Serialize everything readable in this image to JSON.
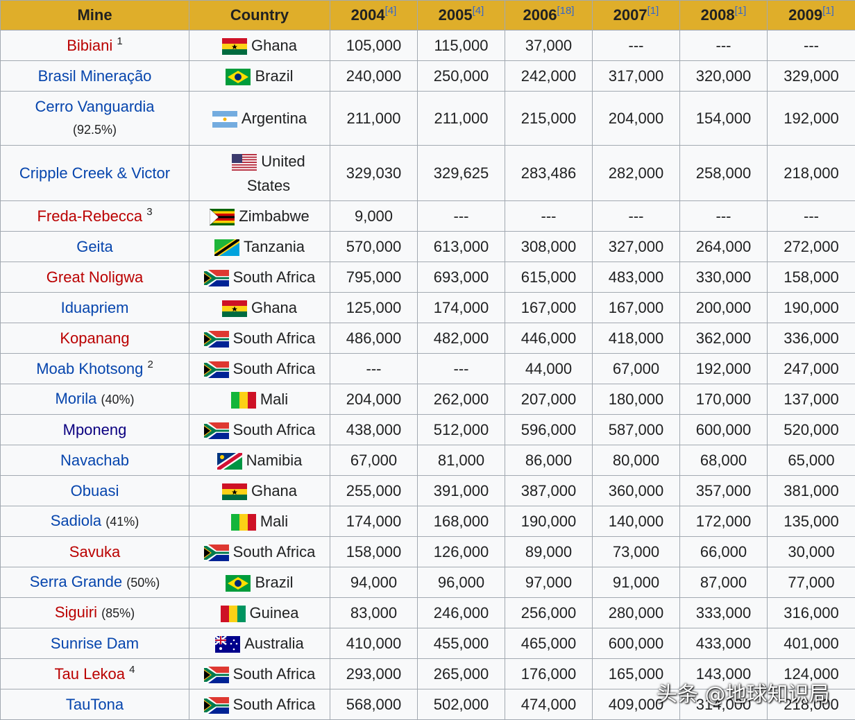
{
  "header": {
    "columns": [
      {
        "label": "Mine"
      },
      {
        "label": "Country"
      },
      {
        "label": "2004",
        "ref": "[4]"
      },
      {
        "label": "2005",
        "ref": "[4]"
      },
      {
        "label": "2006",
        "ref": "[18]"
      },
      {
        "label": "2007",
        "ref": "[1]"
      },
      {
        "label": "2008",
        "ref": "[1]"
      },
      {
        "label": "2009",
        "ref": "[1]"
      }
    ]
  },
  "table": {
    "rows": [
      {
        "mine": "Bibiani",
        "sup": "1",
        "color": "#ba0000",
        "country": "Ghana",
        "values": [
          "105,000",
          "115,000",
          "37,000",
          "---",
          "---",
          "---"
        ]
      },
      {
        "mine": "Brasil Mineração",
        "color": "#0645ad",
        "country": "Brazil",
        "values": [
          "240,000",
          "250,000",
          "242,000",
          "317,000",
          "320,000",
          "329,000"
        ]
      },
      {
        "mine": "Cerro Vanguardia",
        "share": "(92.5%)",
        "color": "#0645ad",
        "country": "Argentina",
        "values": [
          "211,000",
          "211,000",
          "215,000",
          "204,000",
          "154,000",
          "192,000"
        ]
      },
      {
        "mine": "Cripple Creek & Victor",
        "color": "#0645ad",
        "country": "United States",
        "values": [
          "329,030",
          "329,625",
          "283,486",
          "282,000",
          "258,000",
          "218,000"
        ]
      },
      {
        "mine": "Freda-Rebecca",
        "sup": "3",
        "color": "#ba0000",
        "country": "Zimbabwe",
        "values": [
          "9,000",
          "---",
          "---",
          "---",
          "---",
          "---"
        ]
      },
      {
        "mine": "Geita",
        "color": "#0645ad",
        "country": "Tanzania",
        "values": [
          "570,000",
          "613,000",
          "308,000",
          "327,000",
          "264,000",
          "272,000"
        ]
      },
      {
        "mine": "Great Noligwa",
        "color": "#ba0000",
        "country": "South Africa",
        "values": [
          "795,000",
          "693,000",
          "615,000",
          "483,000",
          "330,000",
          "158,000"
        ]
      },
      {
        "mine": "Iduapriem",
        "color": "#0645ad",
        "country": "Ghana",
        "values": [
          "125,000",
          "174,000",
          "167,000",
          "167,000",
          "200,000",
          "190,000"
        ]
      },
      {
        "mine": "Kopanang",
        "color": "#ba0000",
        "country": "South Africa",
        "values": [
          "486,000",
          "482,000",
          "446,000",
          "418,000",
          "362,000",
          "336,000"
        ]
      },
      {
        "mine": "Moab Khotsong",
        "sup": "2",
        "color": "#0645ad",
        "country": "South Africa",
        "values": [
          "---",
          "---",
          "44,000",
          "67,000",
          "192,000",
          "247,000"
        ]
      },
      {
        "mine": "Morila",
        "share": "(40%)",
        "color": "#0645ad",
        "country": "Mali",
        "values": [
          "204,000",
          "262,000",
          "207,000",
          "180,000",
          "170,000",
          "137,000"
        ]
      },
      {
        "mine": "Mponeng",
        "color": "#0b0080",
        "country": "South Africa",
        "values": [
          "438,000",
          "512,000",
          "596,000",
          "587,000",
          "600,000",
          "520,000"
        ]
      },
      {
        "mine": "Navachab",
        "color": "#0645ad",
        "country": "Namibia",
        "values": [
          "67,000",
          "81,000",
          "86,000",
          "80,000",
          "68,000",
          "65,000"
        ]
      },
      {
        "mine": "Obuasi",
        "color": "#0645ad",
        "country": "Ghana",
        "values": [
          "255,000",
          "391,000",
          "387,000",
          "360,000",
          "357,000",
          "381,000"
        ]
      },
      {
        "mine": "Sadiola",
        "share": "(41%)",
        "color": "#0645ad",
        "country": "Mali",
        "values": [
          "174,000",
          "168,000",
          "190,000",
          "140,000",
          "172,000",
          "135,000"
        ]
      },
      {
        "mine": "Savuka",
        "color": "#ba0000",
        "country": "South Africa",
        "values": [
          "158,000",
          "126,000",
          "89,000",
          "73,000",
          "66,000",
          "30,000"
        ]
      },
      {
        "mine": "Serra Grande",
        "share": "(50%)",
        "color": "#0645ad",
        "country": "Brazil",
        "values": [
          "94,000",
          "96,000",
          "97,000",
          "91,000",
          "87,000",
          "77,000"
        ]
      },
      {
        "mine": "Siguiri",
        "share": "(85%)",
        "color": "#ba0000",
        "country": "Guinea",
        "values": [
          "83,000",
          "246,000",
          "256,000",
          "280,000",
          "333,000",
          "316,000"
        ]
      },
      {
        "mine": "Sunrise Dam",
        "color": "#0645ad",
        "country": "Australia",
        "values": [
          "410,000",
          "455,000",
          "465,000",
          "600,000",
          "433,000",
          "401,000"
        ]
      },
      {
        "mine": "Tau Lekoa",
        "sup": "4",
        "color": "#ba0000",
        "country": "South Africa",
        "values": [
          "293,000",
          "265,000",
          "176,000",
          "165,000",
          "143,000",
          "124,000"
        ]
      },
      {
        "mine": "TauTona",
        "color": "#0645ad",
        "country": "South Africa",
        "values": [
          "568,000",
          "502,000",
          "474,000",
          "409,000",
          "314,000",
          "218,000"
        ]
      }
    ]
  },
  "watermark": "头条 @地球知识局"
}
